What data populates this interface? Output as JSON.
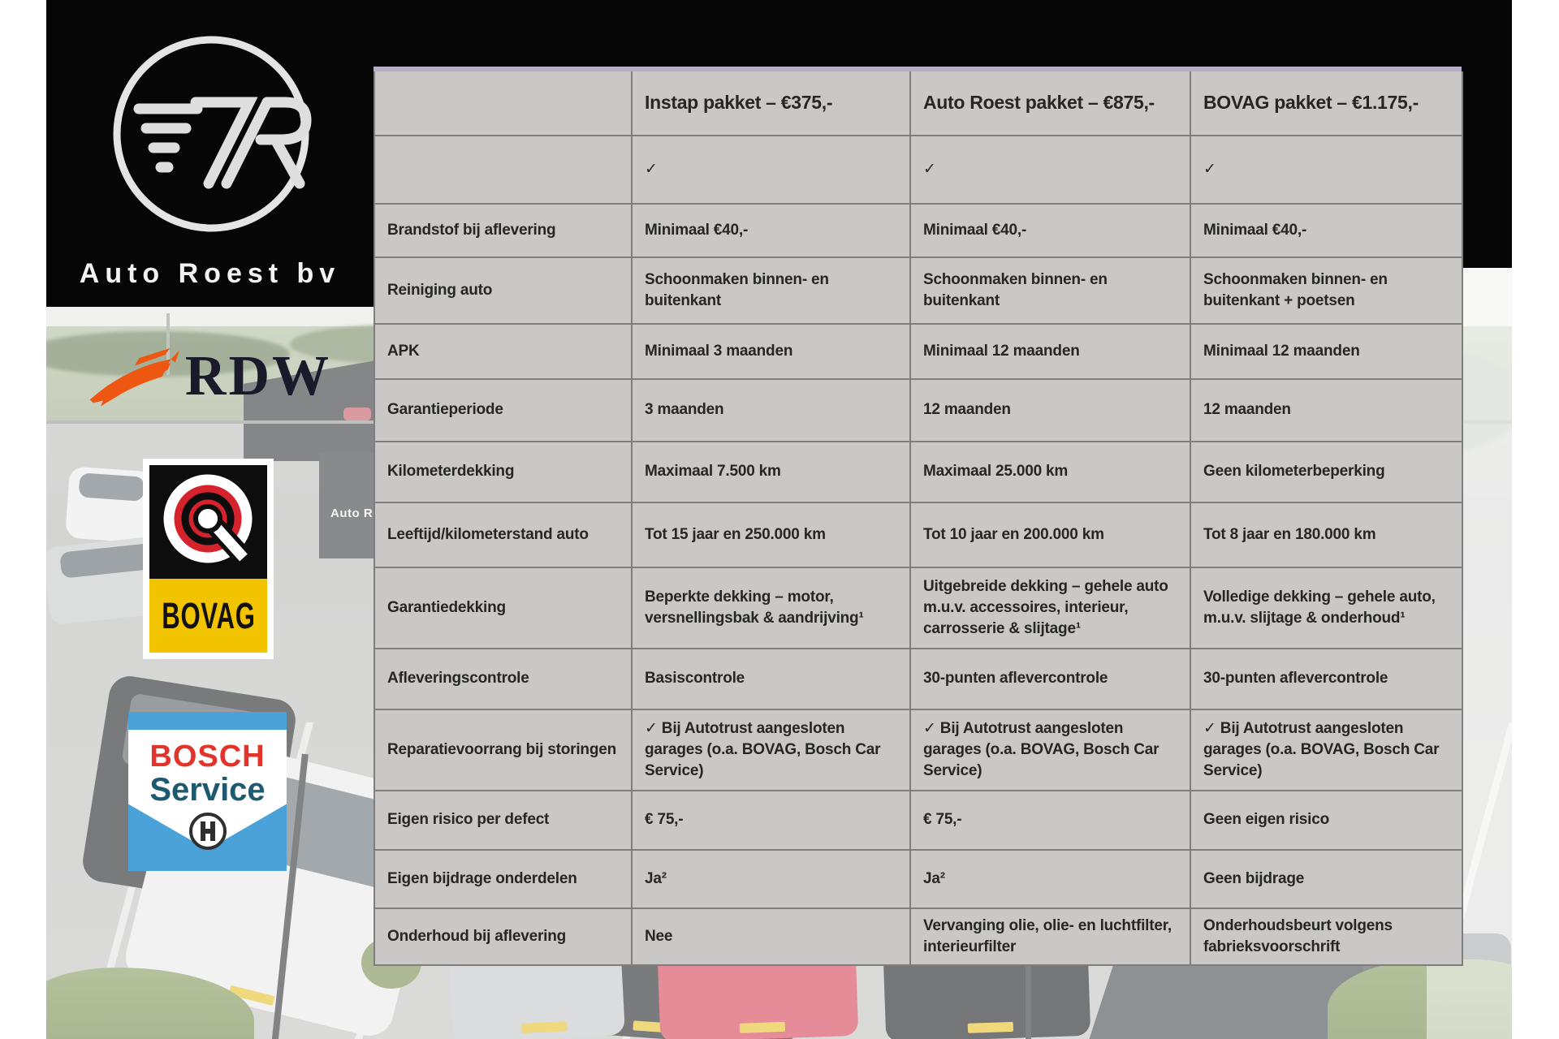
{
  "branding": {
    "dealer_name": "Auto Roest bv",
    "monogram": "7R"
  },
  "partner_logos": {
    "rdw_label": "RDW",
    "bovag_label": "BOVAG",
    "bosch_line1": "BOSCH",
    "bosch_line2": "Service"
  },
  "photo": {
    "building_sign": "Auto Ro"
  },
  "icons": {
    "check": "✓"
  },
  "colors": {
    "table_gray": "#c9c8c6",
    "table_border": "#7e7e7e",
    "lavender_strip": "#b7adc6",
    "band_black": "#060606",
    "rdw_orange": "#ee5712",
    "bovag_yellow": "#f2c400",
    "bovag_red": "#d5232e",
    "bosch_blue": "#4aa2d9",
    "bosch_red": "#e2342a",
    "bosch_teal": "#1d5a70"
  },
  "table": {
    "columns": [
      "",
      "Instap pakket – €375,-",
      "Auto Roest pakket – €875,-",
      "BOVAG pakket – €1.175,-"
    ],
    "rows": [
      {
        "label": "",
        "cells": [
          "✓",
          "✓",
          "✓"
        ]
      },
      {
        "label": "Brandstof bij aflevering",
        "cells": [
          "Minimaal €40,-",
          "Minimaal €40,-",
          "Minimaal €40,-"
        ]
      },
      {
        "label": "Reiniging auto",
        "cells": [
          "Schoonmaken binnen- en buitenkant",
          "Schoonmaken binnen- en buitenkant",
          "Schoonmaken binnen- en buitenkant + poetsen"
        ]
      },
      {
        "label": "APK",
        "cells": [
          "Minimaal 3 maanden",
          "Minimaal 12 maanden",
          "Minimaal 12 maanden"
        ]
      },
      {
        "label": "Garantieperiode",
        "cells": [
          "3 maanden",
          "12 maanden",
          "12 maanden"
        ]
      },
      {
        "label": "Kilometerdekking",
        "cells": [
          "Maximaal 7.500 km",
          "Maximaal 25.000 km",
          "Geen kilometerbeperking"
        ]
      },
      {
        "label": "Leeftijd/kilometerstand auto",
        "cells": [
          "Tot 15 jaar en 250.000 km",
          "Tot 10 jaar en 200.000 km",
          "Tot 8 jaar en 180.000 km"
        ]
      },
      {
        "label": "Garantiedekking",
        "cells": [
          "Beperkte dekking – motor, versnellingsbak & aandrijving¹",
          "Uitgebreide dekking – gehele auto m.u.v. accessoires, interieur, carrosserie & slijtage¹",
          "Volledige dekking – gehele auto, m.u.v. slijtage & onderhoud¹"
        ]
      },
      {
        "label": "Afleveringscontrole",
        "cells": [
          "Basiscontrole",
          "30-punten aflevercontrole",
          "30-punten aflevercontrole"
        ]
      },
      {
        "label": "Reparatievoorrang bij storingen",
        "cells": [
          "✓ Bij Autotrust aangesloten garages (o.a. BOVAG, Bosch Car Service)",
          "✓ Bij Autotrust aangesloten garages (o.a. BOVAG, Bosch Car Service)",
          "✓ Bij Autotrust aangesloten garages (o.a. BOVAG, Bosch Car Service)"
        ]
      },
      {
        "label": "Eigen risico per defect",
        "cells": [
          "€ 75,-",
          "€ 75,-",
          "Geen eigen risico"
        ]
      },
      {
        "label": "Eigen bijdrage onderdelen",
        "cells": [
          "Ja²",
          "Ja²",
          "Geen bijdrage"
        ]
      },
      {
        "label": "Onderhoud bij aflevering",
        "cells": [
          "Nee",
          "Vervanging olie, olie- en luchtfilter, interieurfilter",
          "Onderhoudsbeurt volgens fabrieksvoorschrift"
        ]
      }
    ]
  }
}
